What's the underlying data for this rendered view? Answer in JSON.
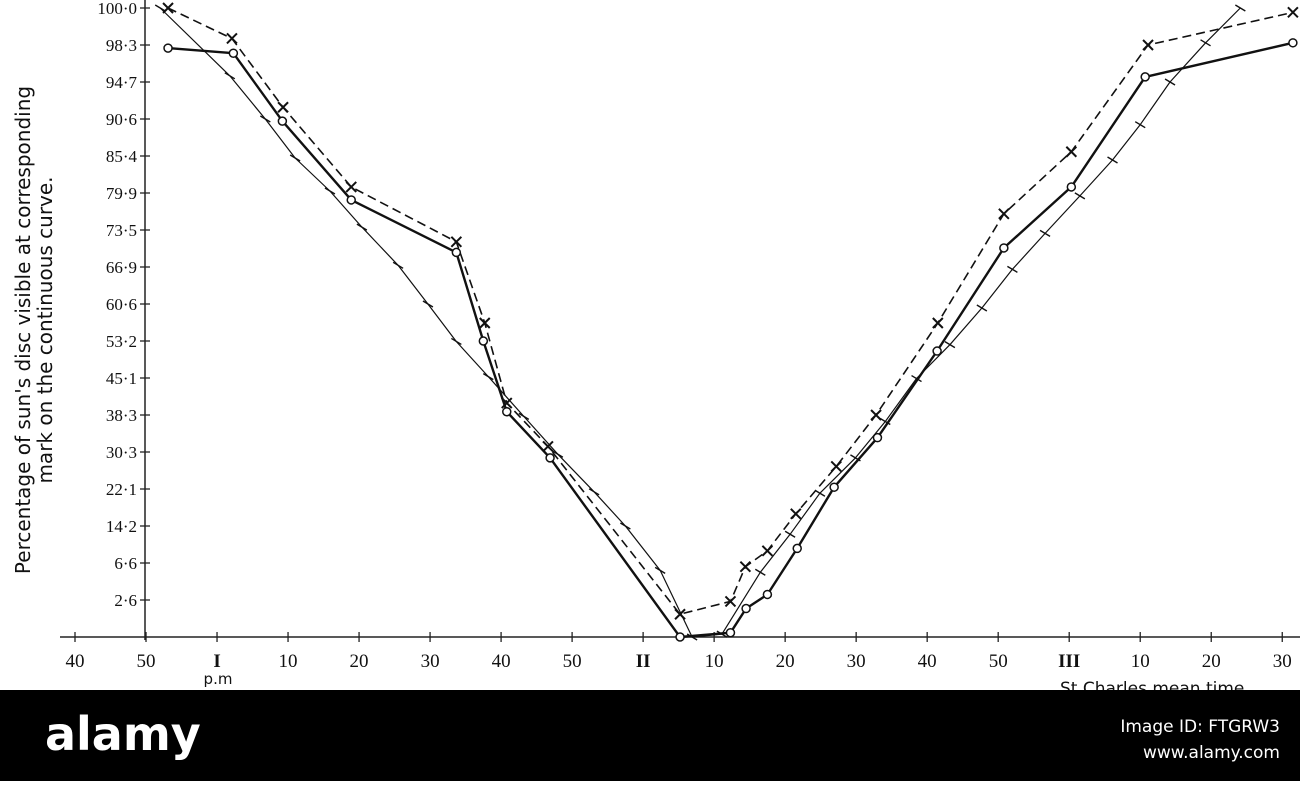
{
  "chart_data": {
    "type": "line",
    "ylabel": [
      "Percentage of sun's disc visible at corresponding",
      "mark on the continuous curve."
    ],
    "xlabel": "St Charles mean time",
    "x_note": "p.m",
    "xlim": [
      40,
      212.5
    ],
    "ylim": [
      0,
      100
    ],
    "xticks": [
      40,
      50,
      {
        "value": 60,
        "label": "I"
      },
      {
        "value": 70,
        "label": "10"
      },
      {
        "value": 80,
        "label": "20"
      },
      {
        "value": 90,
        "label": "30"
      },
      {
        "value": 100,
        "label": "40"
      },
      {
        "value": 110,
        "label": "50"
      },
      {
        "value": 120,
        "label": "II"
      },
      {
        "value": 130,
        "label": "10"
      },
      {
        "value": 140,
        "label": "20"
      },
      {
        "value": 150,
        "label": "30"
      },
      {
        "value": 160,
        "label": "40"
      },
      {
        "value": 170,
        "label": "50"
      },
      {
        "value": 180,
        "label": "III"
      },
      {
        "value": 190,
        "label": "10"
      },
      {
        "value": 200,
        "label": "20"
      },
      {
        "value": 210,
        "label": "30"
      }
    ],
    "yticks": [
      {
        "value": 2.6,
        "label": "2·6"
      },
      {
        "value": 6.6,
        "label": "6·6"
      },
      {
        "value": 14.2,
        "label": "14·2"
      },
      {
        "value": 22.1,
        "label": "22·1"
      },
      {
        "value": 30.3,
        "label": "30·3"
      },
      {
        "value": 38.3,
        "label": "38·3"
      },
      {
        "value": 45.1,
        "label": "45·1"
      },
      {
        "value": 53.2,
        "label": "53·2"
      },
      {
        "value": 60.6,
        "label": "60·6"
      },
      {
        "value": 66.9,
        "label": "66·9"
      },
      {
        "value": 73.5,
        "label": "73·5"
      },
      {
        "value": 79.9,
        "label": "79·9"
      },
      {
        "value": 85.4,
        "label": "85·4"
      },
      {
        "value": 90.6,
        "label": "90·6"
      },
      {
        "value": 94.7,
        "label": "94·7"
      },
      {
        "value": 98.3,
        "label": "98·3"
      },
      {
        "value": 100.0,
        "label": "100·0"
      }
    ],
    "series": [
      {
        "color": "#111111",
        "marker": "circle",
        "dash": false,
        "width": 2.4,
        "x": [
          53.1,
          62.3,
          69.2,
          78.9,
          93.7,
          97.5,
          100.8,
          106.9,
          125.2,
          132.3,
          134.5,
          137.5,
          141.7,
          146.9,
          153,
          161.4,
          170.8,
          180.3,
          190.7,
          211.5
        ],
        "values": [
          98,
          97.5,
          90.3,
          78.7,
          69.5,
          53.2,
          38.9,
          29,
          0,
          0.3,
          2,
          3.2,
          9.6,
          22.5,
          33.4,
          51,
          70.3,
          80.8,
          95.2,
          98.4
        ]
      },
      {
        "color": "#111111",
        "marker": "cross",
        "dash": true,
        "width": 1.6,
        "x": [
          53.1,
          62.1,
          69.3,
          78.9,
          93.7,
          97.7,
          100.8,
          106.6,
          125.2,
          132.3,
          134.4,
          137.5,
          141.5,
          147.2,
          152.8,
          161.5,
          170.8,
          180.3,
          191.1,
          211.5
        ],
        "values": [
          100,
          98.6,
          91.9,
          80.8,
          71.4,
          56.8,
          40.5,
          31.5,
          1.6,
          2.5,
          6.2,
          9.1,
          16.8,
          27.1,
          38.3,
          56.8,
          76.3,
          86,
          98.3,
          99.8
        ]
      },
      {
        "color": "#111111",
        "marker": "tick",
        "dash": false,
        "width": 1.2,
        "x": [
          52,
          61.8,
          66.8,
          71,
          75.9,
          80.4,
          85.5,
          89.7,
          93.7,
          98.2,
          103.2,
          108,
          113.1,
          117.5,
          122.4,
          126.9,
          131.1,
          136.5,
          140.7,
          144.9,
          149.9,
          154.1,
          158.5,
          163.2,
          167.7,
          172,
          176.6,
          181.5,
          186.1,
          190,
          194.2,
          199.2,
          204.1
        ],
        "values": [
          100,
          95.3,
          90.6,
          85.1,
          80.2,
          74,
          67.2,
          60.6,
          53.1,
          45.4,
          38,
          29.8,
          21.5,
          14.2,
          5.8,
          0,
          0.2,
          5.6,
          12.5,
          21.2,
          29,
          36.9,
          45,
          52.4,
          59.8,
          66.5,
          72.9,
          79.4,
          84.8,
          89.8,
          94.7,
          98.4,
          100
        ]
      }
    ]
  },
  "footer": {
    "brand": "alamy",
    "image_id": "Image ID: FTGRW3",
    "site": "www.alamy.com"
  }
}
